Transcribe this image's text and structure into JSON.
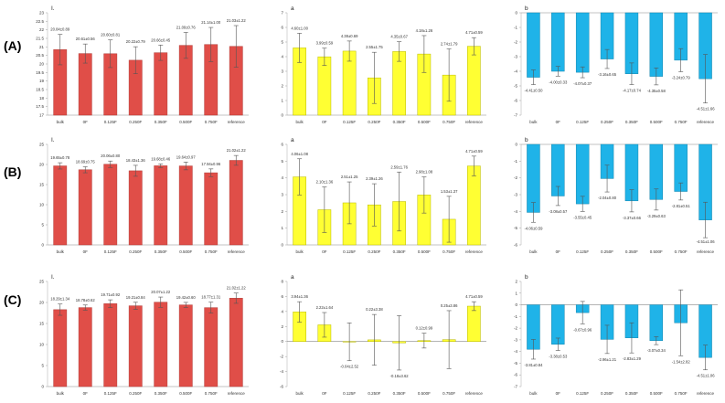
{
  "row_labels": [
    "(A)",
    "(B)",
    "(C)"
  ],
  "colors": {
    "red": "#e04e48",
    "yellow": "#ffff33",
    "blue": "#1fb3e8",
    "bar_edge_red": "#b03a35",
    "bar_edge_yellow": "#b8b800",
    "bar_edge_blue": "#1585ad"
  },
  "chart_data": [
    {
      "type": "bar",
      "title": "I.",
      "color": "red",
      "categories": [
        "bulk",
        "0F",
        "0.125F",
        "0.250F",
        "0.350F",
        "0.500F",
        "0.750F",
        "reference"
      ],
      "values": [
        20.84,
        20.61,
        20.6,
        20.22,
        20.66,
        21.09,
        21.14,
        21.03
      ],
      "errors": [
        0.89,
        0.56,
        0.81,
        0.79,
        0.45,
        0.76,
        1.0,
        1.22
      ],
      "labels": [
        "20.84±0.89",
        "20.61±0.56",
        "20.60±0.81",
        "20.22±0.79",
        "20.66±0.45",
        "21.09±0.76",
        "21.14±1.00",
        "21.03±1.22"
      ],
      "ylim": [
        17,
        23
      ],
      "yticks": [
        17,
        17.5,
        18,
        18.5,
        19,
        19.5,
        20,
        20.5,
        21,
        21.5,
        22,
        22.5,
        23
      ]
    },
    {
      "type": "bar",
      "title": "a",
      "color": "yellow",
      "categories": [
        "bulk",
        "0F",
        "0.125F",
        "0.250F",
        "0.350F",
        "0.500F",
        "0.750F",
        "reference"
      ],
      "values": [
        4.6,
        3.99,
        4.38,
        2.55,
        4.35,
        4.18,
        2.74,
        4.71
      ],
      "errors": [
        1.0,
        0.59,
        0.69,
        1.75,
        0.67,
        1.26,
        1.79,
        0.59
      ],
      "labels": [
        "4.60±1.00",
        "3.99±0.59",
        "4.38±0.69",
        "2.55±1.75",
        "4.35±0.67",
        "4.18±1.26",
        "2.74±1.79",
        "4.71±0.59"
      ],
      "ylim": [
        0,
        7
      ],
      "yticks": [
        0,
        1,
        2,
        3,
        4,
        5,
        6,
        7
      ]
    },
    {
      "type": "bar",
      "title": "b",
      "color": "blue",
      "categories": [
        "bulk",
        "0F",
        "0.125F",
        "0.250F",
        "0.350F",
        "0.500F",
        "0.750F",
        "reference"
      ],
      "values": [
        -4.41,
        -4.0,
        -4.07,
        -3.16,
        -4.17,
        -4.35,
        -3.24,
        -4.51
      ],
      "errors": [
        0.5,
        0.33,
        0.37,
        0.65,
        0.74,
        0.58,
        0.79,
        1.66
      ],
      "labels": [
        "-4.41±0.50",
        "-4.00±0.33",
        "-4.07±0.37",
        "-3.16±0.65",
        "-4.17±0.74",
        "-4.35±0.58",
        "-3.24±0.79",
        "-4.51±1.66"
      ],
      "ylim": [
        -7,
        0
      ],
      "yticks": [
        0,
        -1,
        -2,
        -3,
        -4,
        -5,
        -6,
        -7
      ]
    },
    {
      "type": "bar",
      "title": "I.",
      "color": "red",
      "categories": [
        "bulk",
        "0F",
        "0.125F",
        "0.250F",
        "0.350F",
        "0.500F",
        "0.750F",
        "reference"
      ],
      "values": [
        19.65,
        18.69,
        20.06,
        18.43,
        19.68,
        19.64,
        17.94,
        21.02
      ],
      "errors": [
        0.78,
        0.75,
        0.8,
        1.36,
        0.46,
        0.97,
        0.96,
        1.22
      ],
      "labels": [
        "19.65±0.78",
        "18.69±0.75",
        "20.06±0.80",
        "18.43±1.36",
        "19.68±0.46",
        "19.64±0.97",
        "17.94±0.96",
        "21.02±1.22"
      ],
      "ylim": [
        0,
        25
      ],
      "yticks": [
        0,
        5,
        10,
        15,
        20,
        25
      ]
    },
    {
      "type": "bar",
      "title": "a",
      "color": "yellow",
      "categories": [
        "bulk",
        "0F",
        "0.125F",
        "0.250F",
        "0.350F",
        "0.500F",
        "0.750F",
        "reference"
      ],
      "values": [
        4.06,
        2.1,
        2.51,
        2.39,
        2.59,
        2.98,
        1.53,
        4.71
      ],
      "errors": [
        1.08,
        1.36,
        1.25,
        1.26,
        1.76,
        1.08,
        1.37,
        0.59
      ],
      "labels": [
        "4.06±1.08",
        "2.10±1.36",
        "2.51±1.25",
        "2.39±1.26",
        "2.59±1.76",
        "2.98±1.08",
        "1.53±1.37",
        "4.71±0.59"
      ],
      "ylim": [
        0,
        6
      ],
      "yticks": [
        0,
        1,
        2,
        3,
        4,
        5,
        6
      ]
    },
    {
      "type": "bar",
      "title": "b",
      "color": "blue",
      "categories": [
        "bulk",
        "0F",
        "0.125F",
        "0.250F",
        "0.350F",
        "0.500F",
        "0.750F",
        "reference"
      ],
      "values": [
        -4.06,
        -3.08,
        -3.55,
        -2.04,
        -3.37,
        -3.29,
        -2.81,
        -4.51
      ],
      "errors": [
        0.59,
        0.57,
        0.45,
        0.8,
        0.66,
        0.63,
        0.51,
        1.06
      ],
      "labels": [
        "-4.06±0.59",
        "-3.08±0.57",
        "-3.55±0.45",
        "-2.04±0.80",
        "-3.37±0.66",
        "-3.29±0.63",
        "-2.81±0.51",
        "-4.51±1.06"
      ],
      "ylim": [
        -6,
        0
      ],
      "yticks": [
        0,
        -1,
        -2,
        -3,
        -4,
        -5,
        -6
      ]
    },
    {
      "type": "bar",
      "title": "I.",
      "color": "red",
      "categories": [
        "bulk",
        "0F",
        "0.125F",
        "0.250F",
        "0.350F",
        "0.500F",
        "0.750F",
        "reference"
      ],
      "values": [
        18.29,
        18.78,
        19.71,
        19.21,
        20.07,
        19.42,
        18.77,
        21.02
      ],
      "errors": [
        1.34,
        0.62,
        0.92,
        0.84,
        1.22,
        0.6,
        1.31,
        1.22
      ],
      "labels": [
        "18.29±1.34",
        "18.78±0.62",
        "19.71±0.92",
        "19.21±0.84",
        "20.07±1.22",
        "19.42±0.60",
        "18.77±1.31",
        "21.02±1.22"
      ],
      "ylim": [
        0,
        25
      ],
      "yticks": [
        0,
        5,
        10,
        15,
        20,
        25
      ]
    },
    {
      "type": "bar",
      "title": "a",
      "color": "yellow",
      "categories": [
        "bulk",
        "0F",
        "0.125F",
        "0.250F",
        "0.350F",
        "0.500F",
        "0.750F",
        "reference"
      ],
      "values": [
        3.94,
        2.22,
        -0.04,
        0.22,
        -0.18,
        0.12,
        0.25,
        4.71
      ],
      "errors": [
        1.36,
        1.64,
        2.52,
        3.38,
        3.62,
        0.99,
        3.86,
        0.59
      ],
      "labels": [
        "3.94±1.36",
        "2.22±1.64",
        "-0.04±2.52",
        "0.22±3.38",
        "-0.18±3.62",
        "0.12±0.99",
        "0.25±3.86",
        "4.71±0.59"
      ],
      "ylim": [
        -6,
        8
      ],
      "yticks": [
        -6,
        -4,
        -2,
        0,
        2,
        4,
        6,
        8
      ]
    },
    {
      "type": "bar",
      "title": "b",
      "color": "blue",
      "categories": [
        "bulk",
        "0F",
        "0.125F",
        "0.250F",
        "0.350F",
        "0.500F",
        "0.750F",
        "reference"
      ],
      "values": [
        -3.81,
        -3.38,
        -0.67,
        -2.96,
        -2.83,
        -3.07,
        -1.54,
        -4.51
      ],
      "errors": [
        0.84,
        0.53,
        0.96,
        1.21,
        1.29,
        0.34,
        2.82,
        1.06
      ],
      "labels": [
        "-3.81±0.84",
        "-3.38±0.53",
        "-0.67±0.96",
        "-2.96±1.21",
        "-2.83±1.29",
        "-3.07±0.34",
        "-1.54±2.82",
        "-4.51±1.06"
      ],
      "ylim": [
        -7,
        2
      ],
      "yticks": [
        2,
        1,
        0,
        -1,
        -2,
        -3,
        -4,
        -5,
        -6,
        -7
      ]
    }
  ]
}
